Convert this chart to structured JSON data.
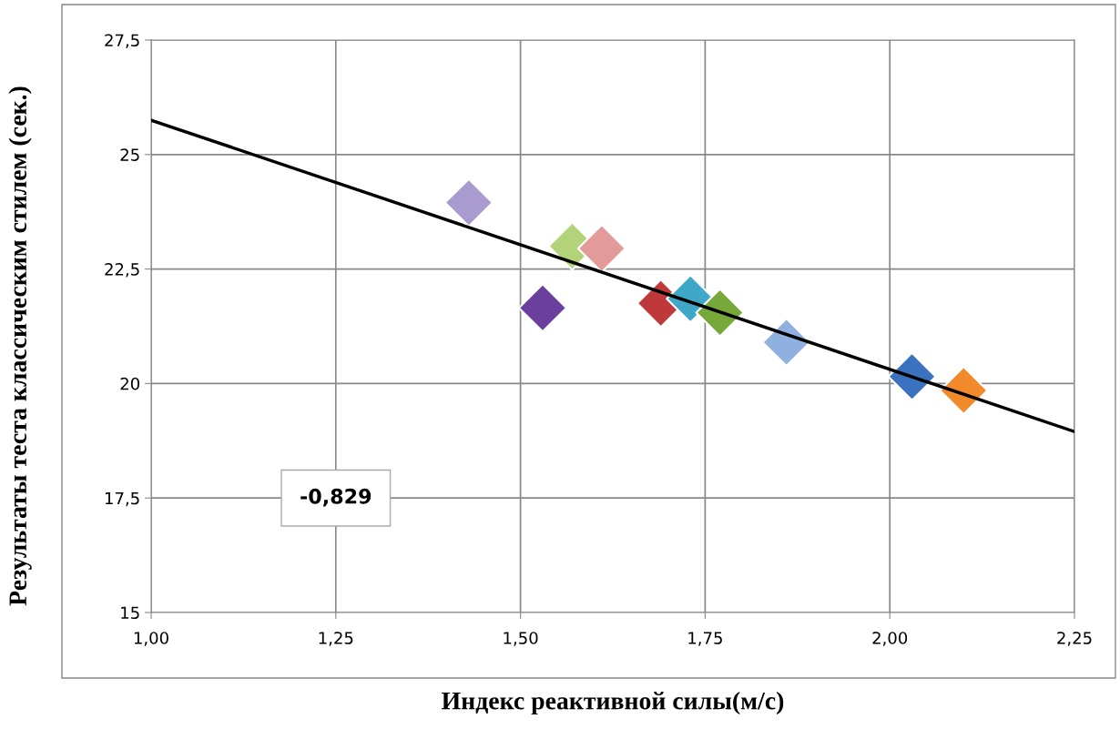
{
  "chart_data": {
    "type": "scatter",
    "xlabel": "Индекс реактивной силы(м/с)",
    "ylabel": "Результаты теста классическим стилем (сек.)",
    "xlim": [
      1.0,
      2.25
    ],
    "ylim": [
      15,
      27.5
    ],
    "xticks": [
      {
        "value": 1.0,
        "label": "1,00"
      },
      {
        "value": 1.25,
        "label": "1,25"
      },
      {
        "value": 1.5,
        "label": "1,50"
      },
      {
        "value": 1.75,
        "label": "1,75"
      },
      {
        "value": 2.0,
        "label": "2,00"
      },
      {
        "value": 2.25,
        "label": "2,25"
      }
    ],
    "yticks": [
      15,
      {
        "value": 17.5,
        "label": "17,5"
      },
      20,
      {
        "value": 22.5,
        "label": "22,5"
      },
      25,
      {
        "value": 27.5,
        "label": "27,5"
      }
    ],
    "grid": true,
    "legend": false,
    "series": [
      {
        "marker": "diamond",
        "x": [
          1.43,
          1.53,
          1.57,
          1.61,
          1.69,
          1.73,
          1.77,
          1.86,
          2.03,
          2.1
        ],
        "values": [
          23.95,
          21.65,
          23.0,
          22.95,
          21.75,
          21.85,
          21.55,
          20.9,
          20.15,
          19.85
        ],
        "colors": [
          "#a99bd0",
          "#6a3f9e",
          "#b3d37a",
          "#e39b9a",
          "#c0393a",
          "#3fa8c8",
          "#77a83a",
          "#90b0e0",
          "#3a72c0",
          "#f08a2a"
        ]
      },
      {
        "type": "line",
        "x": [
          1.0,
          2.25
        ],
        "values": [
          25.75,
          18.95
        ],
        "color": "#000000"
      }
    ],
    "annotations": [
      "-0,829"
    ]
  }
}
